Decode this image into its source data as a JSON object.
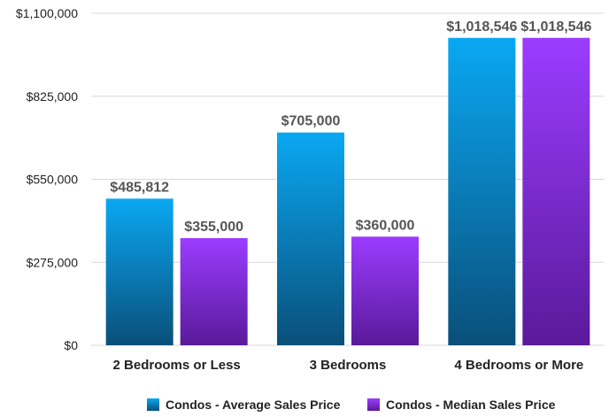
{
  "chart_data": {
    "type": "bar",
    "title": "",
    "xlabel": "",
    "ylabel": "",
    "categories": [
      "2 Bedrooms or Less",
      "3 Bedrooms",
      "4 Bedrooms or More"
    ],
    "series": [
      {
        "name": "Condos - Average Sales Price",
        "values": [
          485812,
          705000,
          1018546
        ],
        "labels": [
          "$485,812",
          "$705,000",
          "$1,018,546"
        ],
        "color_top": "#0aa8f2",
        "color_bottom": "#0a4f7a"
      },
      {
        "name": "Condos - Median Sales Price",
        "values": [
          355000,
          360000,
          1018546
        ],
        "labels": [
          "$355,000",
          "$360,000",
          "$1,018,546"
        ],
        "color_top": "#9b3cff",
        "color_bottom": "#5a1a9a"
      }
    ],
    "ylim": [
      0,
      1100000
    ],
    "yticks": [
      0,
      275000,
      550000,
      825000,
      1100000
    ],
    "ytick_labels": [
      "$0",
      "$275,000",
      "$550,000",
      "$825,000",
      "$1,100,000"
    ],
    "grid": true,
    "legend": "bottom"
  }
}
